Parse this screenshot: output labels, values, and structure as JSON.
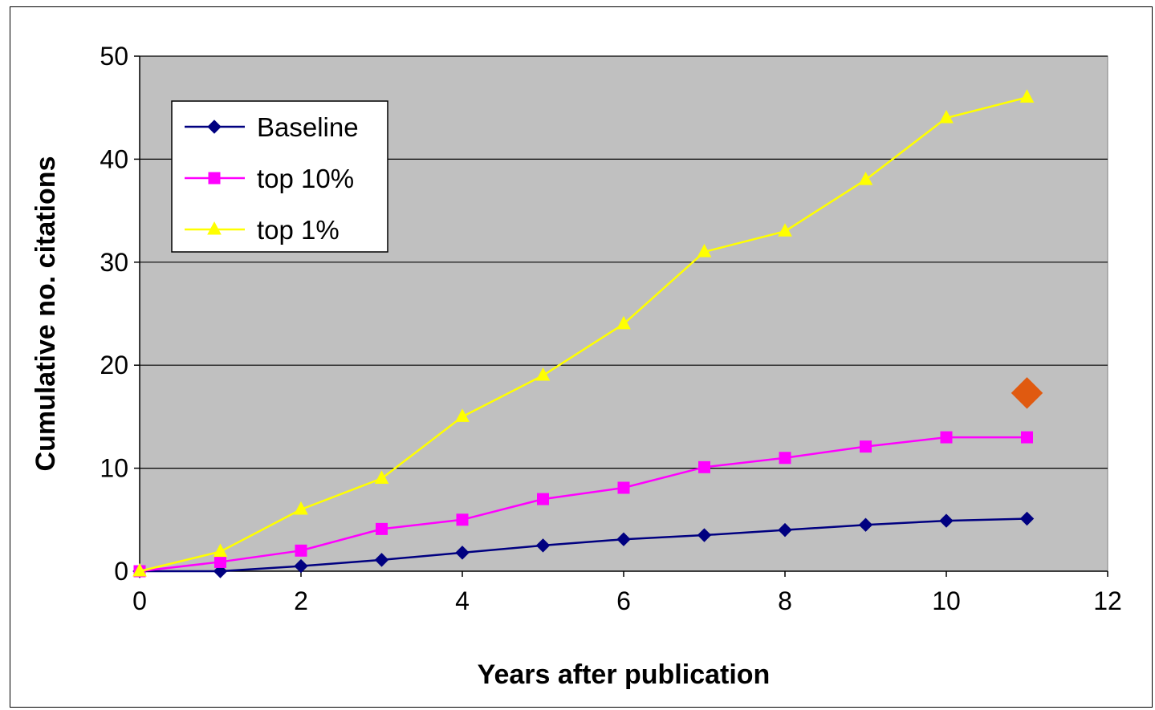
{
  "chart_data": {
    "type": "line",
    "title": "",
    "xlabel": "Years after publication",
    "ylabel": "Cumulative no. citations",
    "xlim": [
      0,
      12
    ],
    "ylim": [
      0,
      50
    ],
    "x_ticks": [
      0,
      2,
      4,
      6,
      8,
      10,
      12
    ],
    "y_ticks": [
      0,
      10,
      20,
      30,
      40,
      50
    ],
    "grid": "horizontal",
    "plot_background": "#c0c0c0",
    "legend_position": "top-left",
    "x": [
      0,
      1,
      2,
      3,
      4,
      5,
      6,
      7,
      8,
      9,
      10,
      11
    ],
    "series": [
      {
        "name": "Baseline",
        "color": "#000080",
        "marker": "diamond",
        "values": [
          0,
          0,
          0.5,
          1.1,
          1.8,
          2.5,
          3.1,
          3.5,
          4.0,
          4.5,
          4.9,
          5.1
        ]
      },
      {
        "name": "top 10%",
        "color": "#ff00ff",
        "marker": "square",
        "values": [
          0,
          0.9,
          2.0,
          4.1,
          5.0,
          7.0,
          8.1,
          10.1,
          11.0,
          12.1,
          13.0,
          13.0
        ]
      },
      {
        "name": "top 1%",
        "color": "#ffff00",
        "marker": "triangle",
        "values": [
          0,
          1.9,
          6.0,
          9.0,
          15.0,
          19.0,
          24.0,
          31.0,
          33.0,
          38.0,
          44.0,
          46.0
        ]
      }
    ],
    "extra_points": [
      {
        "x": 11,
        "y": 17.3,
        "marker": "diamond",
        "color": "#e05a10"
      }
    ]
  }
}
